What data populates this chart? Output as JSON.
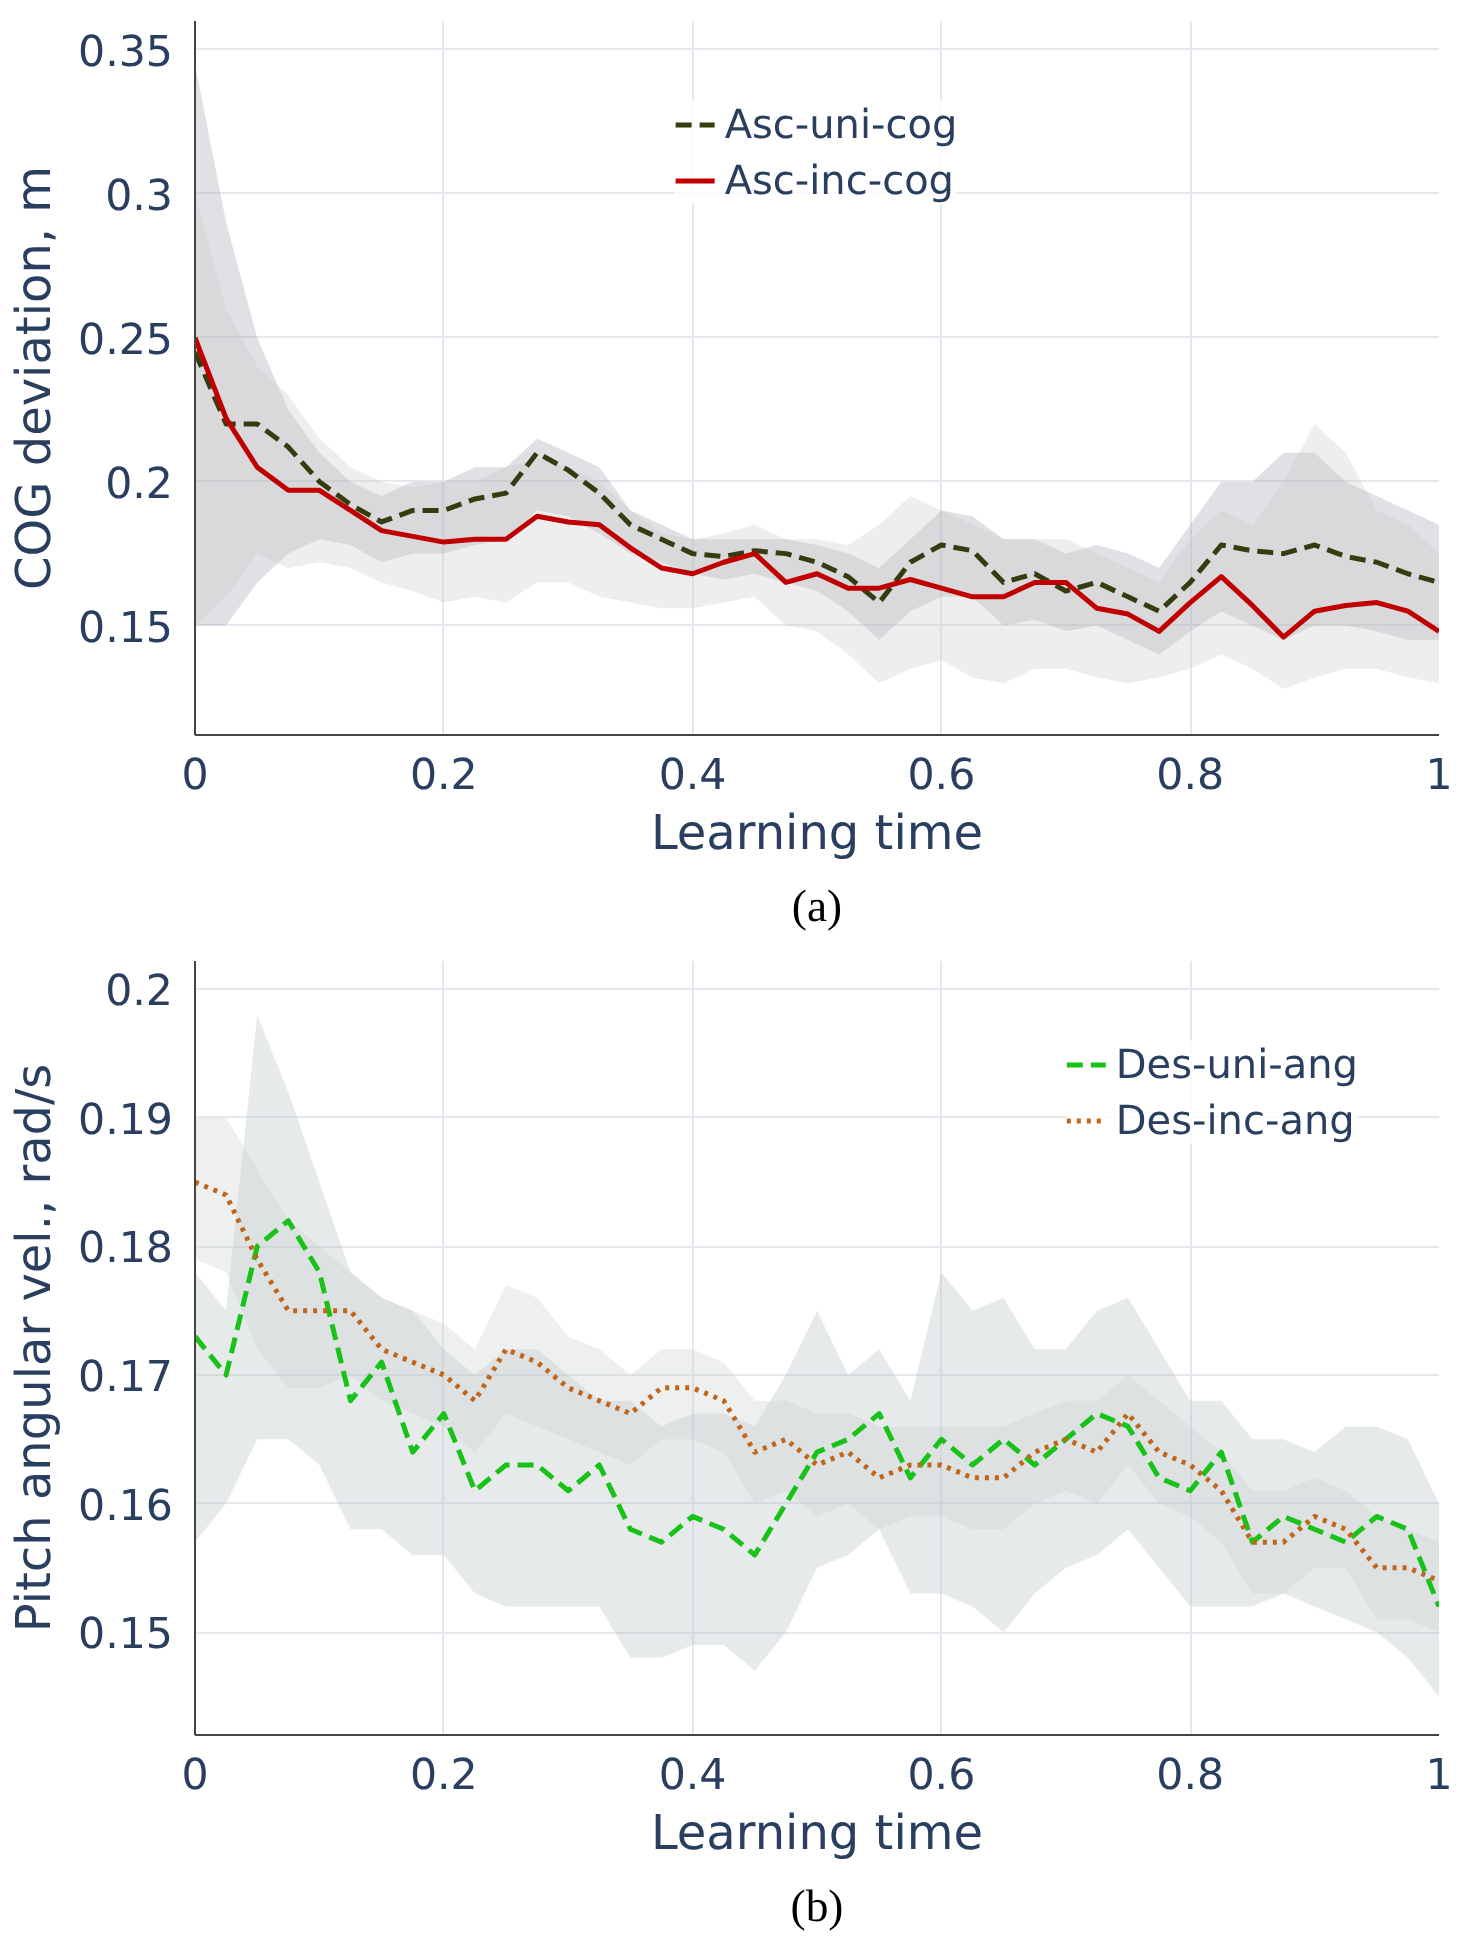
{
  "chart_data": [
    {
      "type": "line",
      "xlabel": "Learning time",
      "ylabel": "COG deviation, m",
      "annotations": [
        "(a)"
      ],
      "x": [
        0,
        0.025,
        0.05,
        0.075,
        0.1,
        0.125,
        0.15,
        0.175,
        0.2,
        0.225,
        0.25,
        0.275,
        0.3,
        0.325,
        0.35,
        0.375,
        0.4,
        0.425,
        0.45,
        0.475,
        0.5,
        0.525,
        0.55,
        0.575,
        0.6,
        0.625,
        0.65,
        0.675,
        0.7,
        0.725,
        0.75,
        0.775,
        0.8,
        0.825,
        0.85,
        0.875,
        0.9,
        0.925,
        0.95,
        0.975,
        1
      ],
      "xlim": [
        0,
        1
      ],
      "ylim": [
        0.112,
        0.36
      ],
      "xticks": [
        0,
        0.2,
        0.4,
        0.6,
        0.8,
        1
      ],
      "yticks": [
        0.15,
        0.2,
        0.25,
        0.3,
        0.35
      ],
      "grid": true,
      "legend": "top center",
      "series": [
        {
          "name": "Asc-uni-cog",
          "color": "#333d0f",
          "line_style": "dashed",
          "values": [
            0.245,
            0.22,
            0.22,
            0.212,
            0.2,
            0.192,
            0.186,
            0.19,
            0.19,
            0.194,
            0.196,
            0.21,
            0.204,
            0.196,
            0.185,
            0.18,
            0.175,
            0.174,
            0.176,
            0.175,
            0.172,
            0.167,
            0.158,
            0.172,
            0.178,
            0.176,
            0.165,
            0.168,
            0.162,
            0.165,
            0.16,
            0.155,
            0.165,
            0.178,
            0.176,
            0.175,
            0.178,
            0.174,
            0.172,
            0.168,
            0.165
          ],
          "upper": [
            0.345,
            0.29,
            0.25,
            0.225,
            0.21,
            0.2,
            0.195,
            0.2,
            0.2,
            0.205,
            0.205,
            0.215,
            0.21,
            0.205,
            0.19,
            0.185,
            0.18,
            0.18,
            0.18,
            0.18,
            0.178,
            0.175,
            0.17,
            0.18,
            0.19,
            0.188,
            0.18,
            0.18,
            0.175,
            0.178,
            0.175,
            0.17,
            0.185,
            0.2,
            0.2,
            0.21,
            0.21,
            0.2,
            0.195,
            0.19,
            0.185
          ],
          "lower": [
            0.15,
            0.15,
            0.165,
            0.175,
            0.18,
            0.178,
            0.172,
            0.175,
            0.175,
            0.178,
            0.18,
            0.19,
            0.188,
            0.182,
            0.175,
            0.172,
            0.168,
            0.166,
            0.168,
            0.165,
            0.162,
            0.155,
            0.145,
            0.155,
            0.16,
            0.16,
            0.15,
            0.152,
            0.148,
            0.15,
            0.145,
            0.14,
            0.148,
            0.155,
            0.15,
            0.145,
            0.15,
            0.15,
            0.148,
            0.145,
            0.145
          ]
        },
        {
          "name": "Asc-inc-cog",
          "color": "#c00000",
          "line_style": "solid",
          "values": [
            0.25,
            0.222,
            0.205,
            0.197,
            0.197,
            0.19,
            0.183,
            0.181,
            0.179,
            0.18,
            0.18,
            0.188,
            0.186,
            0.185,
            0.177,
            0.17,
            0.168,
            0.172,
            0.175,
            0.165,
            0.168,
            0.163,
            0.163,
            0.166,
            0.163,
            0.16,
            0.16,
            0.165,
            0.165,
            0.156,
            0.154,
            0.148,
            0.158,
            0.167,
            0.157,
            0.146,
            0.155,
            0.157,
            0.158,
            0.155,
            0.148
          ],
          "upper": [
            0.3,
            0.26,
            0.24,
            0.23,
            0.215,
            0.205,
            0.2,
            0.198,
            0.2,
            0.2,
            0.205,
            0.208,
            0.205,
            0.2,
            0.19,
            0.182,
            0.18,
            0.182,
            0.185,
            0.18,
            0.18,
            0.178,
            0.185,
            0.195,
            0.19,
            0.185,
            0.18,
            0.18,
            0.18,
            0.175,
            0.17,
            0.165,
            0.18,
            0.19,
            0.185,
            0.2,
            0.22,
            0.21,
            0.19,
            0.185,
            0.175
          ],
          "lower": [
            0.15,
            0.16,
            0.175,
            0.17,
            0.172,
            0.17,
            0.165,
            0.162,
            0.158,
            0.16,
            0.158,
            0.165,
            0.165,
            0.16,
            0.158,
            0.156,
            0.156,
            0.158,
            0.16,
            0.15,
            0.148,
            0.14,
            0.13,
            0.135,
            0.138,
            0.132,
            0.13,
            0.135,
            0.135,
            0.132,
            0.13,
            0.132,
            0.135,
            0.14,
            0.135,
            0.128,
            0.132,
            0.135,
            0.135,
            0.132,
            0.13
          ]
        }
      ]
    },
    {
      "type": "line",
      "xlabel": "Learning time",
      "ylabel": "Pitch angular vel., rad/s",
      "annotations": [
        "(b)"
      ],
      "x": [
        0,
        0.025,
        0.05,
        0.075,
        0.1,
        0.125,
        0.15,
        0.175,
        0.2,
        0.225,
        0.25,
        0.275,
        0.3,
        0.325,
        0.35,
        0.375,
        0.4,
        0.425,
        0.45,
        0.475,
        0.5,
        0.525,
        0.55,
        0.575,
        0.6,
        0.625,
        0.65,
        0.675,
        0.7,
        0.725,
        0.75,
        0.775,
        0.8,
        0.825,
        0.85,
        0.875,
        0.9,
        0.925,
        0.95,
        0.975,
        1
      ],
      "xlim": [
        0,
        1
      ],
      "ylim": [
        0.142,
        0.2022
      ],
      "xticks": [
        0,
        0.2,
        0.4,
        0.6,
        0.8,
        1
      ],
      "yticks": [
        0.15,
        0.16,
        0.17,
        0.18,
        0.19,
        0.2
      ],
      "grid": true,
      "legend": "top right",
      "series": [
        {
          "name": "Des-uni-ang",
          "color": "#19c219",
          "line_style": "dashed",
          "values": [
            0.173,
            0.17,
            0.18,
            0.182,
            0.178,
            0.168,
            0.171,
            0.164,
            0.167,
            0.161,
            0.163,
            0.163,
            0.161,
            0.163,
            0.158,
            0.157,
            0.159,
            0.158,
            0.156,
            0.16,
            0.164,
            0.165,
            0.167,
            0.162,
            0.165,
            0.163,
            0.165,
            0.163,
            0.165,
            0.167,
            0.166,
            0.162,
            0.161,
            0.164,
            0.157,
            0.159,
            0.158,
            0.157,
            0.159,
            0.158,
            0.152
          ],
          "upper": [
            0.178,
            0.175,
            0.198,
            0.192,
            0.185,
            0.178,
            0.176,
            0.175,
            0.172,
            0.17,
            0.172,
            0.172,
            0.17,
            0.168,
            0.168,
            0.166,
            0.167,
            0.167,
            0.166,
            0.17,
            0.175,
            0.17,
            0.172,
            0.168,
            0.178,
            0.175,
            0.176,
            0.172,
            0.172,
            0.175,
            0.176,
            0.172,
            0.168,
            0.168,
            0.165,
            0.165,
            0.164,
            0.166,
            0.166,
            0.165,
            0.16
          ],
          "lower": [
            0.157,
            0.16,
            0.165,
            0.165,
            0.163,
            0.158,
            0.158,
            0.156,
            0.156,
            0.153,
            0.152,
            0.152,
            0.152,
            0.152,
            0.148,
            0.148,
            0.149,
            0.149,
            0.147,
            0.15,
            0.155,
            0.156,
            0.158,
            0.153,
            0.153,
            0.152,
            0.15,
            0.153,
            0.155,
            0.156,
            0.158,
            0.155,
            0.152,
            0.152,
            0.152,
            0.153,
            0.152,
            0.151,
            0.15,
            0.148,
            0.145
          ]
        },
        {
          "name": "Des-inc-ang",
          "color": "#c0651a",
          "line_style": "dotted",
          "values": [
            0.185,
            0.184,
            0.179,
            0.175,
            0.175,
            0.175,
            0.172,
            0.171,
            0.17,
            0.168,
            0.172,
            0.171,
            0.169,
            0.168,
            0.167,
            0.169,
            0.169,
            0.168,
            0.164,
            0.165,
            0.163,
            0.164,
            0.162,
            0.163,
            0.163,
            0.162,
            0.162,
            0.164,
            0.165,
            0.164,
            0.167,
            0.164,
            0.163,
            0.161,
            0.157,
            0.157,
            0.159,
            0.158,
            0.155,
            0.155,
            0.154
          ],
          "upper": [
            0.19,
            0.19,
            0.186,
            0.182,
            0.18,
            0.178,
            0.176,
            0.175,
            0.174,
            0.172,
            0.177,
            0.176,
            0.173,
            0.172,
            0.17,
            0.172,
            0.172,
            0.171,
            0.168,
            0.168,
            0.167,
            0.167,
            0.166,
            0.166,
            0.166,
            0.166,
            0.166,
            0.167,
            0.168,
            0.168,
            0.17,
            0.168,
            0.166,
            0.164,
            0.161,
            0.161,
            0.162,
            0.161,
            0.159,
            0.158,
            0.157
          ],
          "lower": [
            0.179,
            0.178,
            0.172,
            0.169,
            0.169,
            0.17,
            0.168,
            0.167,
            0.166,
            0.164,
            0.167,
            0.166,
            0.165,
            0.164,
            0.163,
            0.165,
            0.165,
            0.164,
            0.16,
            0.161,
            0.159,
            0.16,
            0.158,
            0.159,
            0.159,
            0.158,
            0.158,
            0.16,
            0.161,
            0.16,
            0.163,
            0.16,
            0.159,
            0.157,
            0.153,
            0.153,
            0.155,
            0.155,
            0.151,
            0.151,
            0.15
          ]
        }
      ]
    }
  ]
}
